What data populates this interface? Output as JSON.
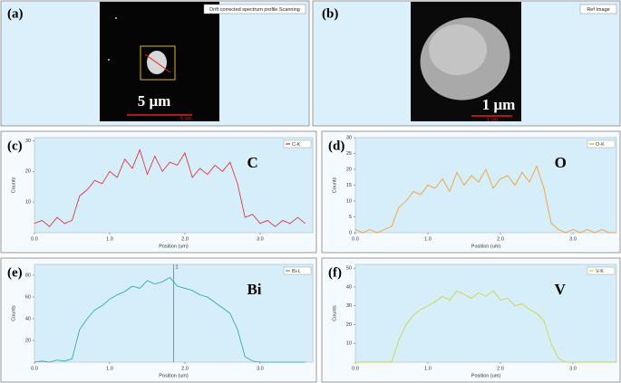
{
  "images": [
    {
      "label": "(a)",
      "caption": "Drift corrected spectrum profile Scanning",
      "scale_label": "5 μm",
      "scale_bar_label": "5 um"
    },
    {
      "label": "(b)",
      "caption": "Ref Image",
      "scale_label": "1 μm",
      "scale_bar_label": "1 um"
    }
  ],
  "chart_data": [
    {
      "type": "line",
      "panel_label": "(c)",
      "element_label": "C",
      "xlabel": "Position (um)",
      "ylabel": "Counts",
      "x": [
        0,
        0.1,
        0.2,
        0.3,
        0.4,
        0.5,
        0.6,
        0.7,
        0.8,
        0.9,
        1.0,
        1.1,
        1.2,
        1.3,
        1.4,
        1.5,
        1.6,
        1.7,
        1.8,
        1.9,
        2.0,
        2.1,
        2.2,
        2.3,
        2.4,
        2.5,
        2.6,
        2.7,
        2.8,
        2.9,
        3.0,
        3.1,
        3.2,
        3.3,
        3.4,
        3.5,
        3.6
      ],
      "series": [
        {
          "name": "C-K",
          "color": "#e8202a",
          "values": [
            3,
            4,
            2,
            5,
            3,
            4,
            12,
            14,
            17,
            16,
            20,
            18,
            24,
            21,
            27,
            19,
            25,
            20,
            23,
            22,
            26,
            18,
            21,
            19,
            22,
            20,
            23,
            16,
            5,
            6,
            3,
            4,
            2,
            4,
            3,
            5,
            3
          ]
        }
      ],
      "xlim": [
        0,
        3.7
      ],
      "ylim": [
        0,
        31
      ],
      "xticks": [
        {
          "value": 0,
          "label": "0.0"
        },
        {
          "value": 1,
          "label": "1.0"
        },
        {
          "value": 2,
          "label": "2.0"
        },
        {
          "value": 3,
          "label": "3.0"
        }
      ],
      "yticks": [
        10,
        20,
        30
      ]
    },
    {
      "type": "line",
      "panel_label": "(d)",
      "element_label": "O",
      "xlabel": "Position (um)",
      "ylabel": "Counts",
      "x": [
        0,
        0.1,
        0.2,
        0.3,
        0.4,
        0.5,
        0.6,
        0.7,
        0.8,
        0.9,
        1.0,
        1.1,
        1.2,
        1.3,
        1.4,
        1.5,
        1.6,
        1.7,
        1.8,
        1.9,
        2.0,
        2.1,
        2.2,
        2.3,
        2.4,
        2.5,
        2.6,
        2.7,
        2.8,
        2.9,
        3.0,
        3.1,
        3.2,
        3.3,
        3.4,
        3.5,
        3.6
      ],
      "series": [
        {
          "name": "O-K",
          "color": "#f7941d",
          "values": [
            1,
            0,
            1,
            0,
            1,
            2,
            8,
            10,
            13,
            12,
            15,
            14,
            17,
            13,
            19,
            15,
            18,
            16,
            20,
            14,
            17,
            18,
            15,
            19,
            16,
            21,
            14,
            3,
            1,
            0,
            1,
            0,
            1,
            0,
            1,
            0,
            0
          ]
        }
      ],
      "xlim": [
        0,
        3.6
      ],
      "ylim": [
        0,
        30
      ],
      "xticks": [
        {
          "value": 0,
          "label": "0.0"
        },
        {
          "value": 1,
          "label": "1.0"
        },
        {
          "value": 2,
          "label": "2.0"
        },
        {
          "value": 3,
          "label": "3.0"
        }
      ],
      "yticks": [
        0,
        5,
        10,
        15,
        20,
        25,
        30
      ]
    },
    {
      "type": "line",
      "panel_label": "(e)",
      "element_label": "Bi",
      "xlabel": "Position (um)",
      "ylabel": "Counts",
      "x": [
        0,
        0.1,
        0.2,
        0.3,
        0.4,
        0.5,
        0.6,
        0.7,
        0.8,
        0.9,
        1.0,
        1.1,
        1.2,
        1.3,
        1.4,
        1.5,
        1.6,
        1.7,
        1.8,
        1.9,
        2.0,
        2.1,
        2.2,
        2.3,
        2.4,
        2.5,
        2.6,
        2.7,
        2.8,
        2.9,
        3.0,
        3.1,
        3.2,
        3.3,
        3.4,
        3.5,
        3.6
      ],
      "series": [
        {
          "name": "Bi-L",
          "color": "#1fa5a8",
          "values": [
            0,
            1,
            0,
            2,
            1,
            3,
            30,
            40,
            48,
            52,
            58,
            62,
            65,
            70,
            68,
            75,
            72,
            74,
            78,
            70,
            68,
            66,
            62,
            60,
            55,
            50,
            45,
            30,
            5,
            1,
            0,
            0,
            0,
            0,
            0,
            0,
            0
          ]
        }
      ],
      "xlim": [
        0,
        3.7
      ],
      "ylim": [
        0,
        90
      ],
      "xticks": [
        {
          "value": 0,
          "label": "0.0"
        },
        {
          "value": 1,
          "label": "1.0"
        },
        {
          "value": 2,
          "label": "2.0"
        },
        {
          "value": 3,
          "label": "3.0"
        }
      ],
      "yticks": [
        20,
        40,
        60,
        80
      ],
      "cursor": {
        "value": 1.85,
        "label": "1"
      }
    },
    {
      "type": "line",
      "panel_label": "(f)",
      "element_label": "V",
      "xlabel": "Position (um)",
      "ylabel": "Counts",
      "x": [
        0,
        0.1,
        0.2,
        0.3,
        0.4,
        0.5,
        0.6,
        0.7,
        0.8,
        0.9,
        1.0,
        1.1,
        1.2,
        1.3,
        1.4,
        1.5,
        1.6,
        1.7,
        1.8,
        1.9,
        2.0,
        2.1,
        2.2,
        2.3,
        2.4,
        2.5,
        2.6,
        2.7,
        2.8,
        2.9,
        3.0,
        3.1,
        3.2,
        3.3,
        3.4,
        3.5,
        3.6
      ],
      "series": [
        {
          "name": "V-K",
          "color": "#c8d22e",
          "values": [
            0,
            0,
            0,
            0,
            0,
            0,
            12,
            20,
            25,
            28,
            30,
            32,
            35,
            33,
            38,
            36,
            34,
            37,
            35,
            38,
            33,
            34,
            30,
            31,
            28,
            26,
            22,
            10,
            2,
            0,
            0,
            0,
            0,
            0,
            0,
            0,
            0
          ]
        }
      ],
      "xlim": [
        0,
        3.6
      ],
      "ylim": [
        0,
        52
      ],
      "xticks": [
        {
          "value": 0,
          "label": "0.0"
        },
        {
          "value": 1,
          "label": "1.0"
        },
        {
          "value": 2,
          "label": "2.0"
        },
        {
          "value": 3,
          "label": "3.0"
        }
      ],
      "yticks": [
        10,
        20,
        30,
        40,
        50
      ]
    }
  ]
}
